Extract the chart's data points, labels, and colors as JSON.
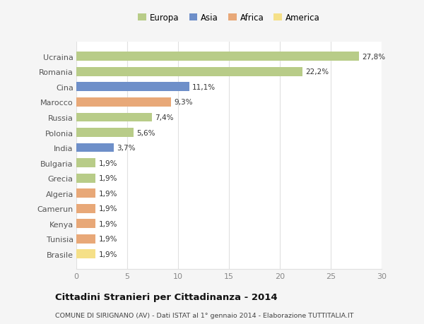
{
  "categories": [
    "Brasile",
    "Tunisia",
    "Kenya",
    "Camerun",
    "Algeria",
    "Grecia",
    "Bulgaria",
    "India",
    "Polonia",
    "Russia",
    "Marocco",
    "Cina",
    "Romania",
    "Ucraina"
  ],
  "values": [
    1.9,
    1.9,
    1.9,
    1.9,
    1.9,
    1.9,
    1.9,
    3.7,
    5.6,
    7.4,
    9.3,
    11.1,
    22.2,
    27.8
  ],
  "colors": [
    "#f5e088",
    "#e8a878",
    "#e8a878",
    "#e8a878",
    "#e8a878",
    "#b8cc88",
    "#b8cc88",
    "#6e8fc9",
    "#b8cc88",
    "#b8cc88",
    "#e8a878",
    "#6e8fc9",
    "#b8cc88",
    "#b8cc88"
  ],
  "labels": [
    "1,9%",
    "1,9%",
    "1,9%",
    "1,9%",
    "1,9%",
    "1,9%",
    "1,9%",
    "3,7%",
    "5,6%",
    "7,4%",
    "9,3%",
    "11,1%",
    "22,2%",
    "27,8%"
  ],
  "legend_labels": [
    "Europa",
    "Asia",
    "Africa",
    "America"
  ],
  "legend_colors": [
    "#b8cc88",
    "#6e8fc9",
    "#e8a878",
    "#f5e088"
  ],
  "title": "Cittadini Stranieri per Cittadinanza - 2014",
  "subtitle": "COMUNE DI SIRIGNANO (AV) - Dati ISTAT al 1° gennaio 2014 - Elaborazione TUTTITALIA.IT",
  "xlim": [
    0,
    30
  ],
  "xticks": [
    0,
    5,
    10,
    15,
    20,
    25,
    30
  ],
  "plot_bg": "#ffffff",
  "fig_bg": "#f5f5f5",
  "grid_color": "#e0e0e0"
}
